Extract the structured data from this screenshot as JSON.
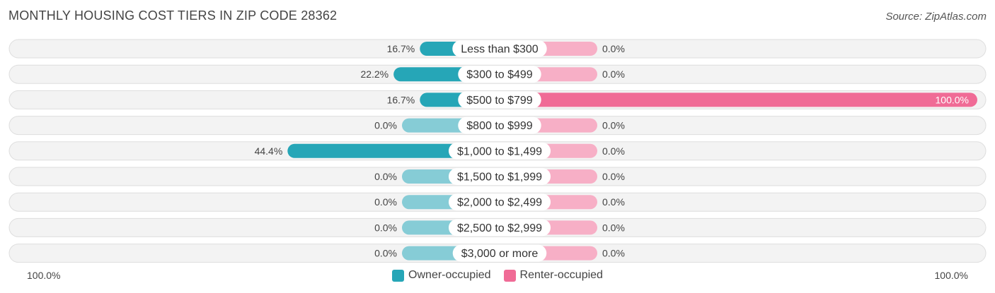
{
  "title": "MONTHLY HOUSING COST TIERS IN ZIP CODE 28362",
  "source": "Source: ZipAtlas.com",
  "axis": {
    "left_label": "100.0%",
    "right_label": "100.0%"
  },
  "colors": {
    "owner_strong": "#26a6b7",
    "owner_light": "#86ccd6",
    "renter_strong": "#f06b96",
    "renter_light": "#f7afc6",
    "row_bg": "#f3f3f3",
    "row_border": "#dedede"
  },
  "chart_data": {
    "type": "bar",
    "orientation": "diverging-horizontal",
    "categories": [
      "Less than $300",
      "$300 to $499",
      "$500 to $799",
      "$800 to $999",
      "$1,000 to $1,499",
      "$1,500 to $1,999",
      "$2,000 to $2,499",
      "$2,500 to $2,999",
      "$3,000 or more"
    ],
    "series": [
      {
        "name": "Owner-occupied",
        "values": [
          16.7,
          22.2,
          16.7,
          0.0,
          44.4,
          0.0,
          0.0,
          0.0,
          0.0
        ],
        "labels": [
          "16.7%",
          "22.2%",
          "16.7%",
          "0.0%",
          "44.4%",
          "0.0%",
          "0.0%",
          "0.0%",
          "0.0%"
        ]
      },
      {
        "name": "Renter-occupied",
        "values": [
          0.0,
          0.0,
          100.0,
          0.0,
          0.0,
          0.0,
          0.0,
          0.0,
          0.0
        ],
        "labels": [
          "0.0%",
          "0.0%",
          "100.0%",
          "0.0%",
          "0.0%",
          "0.0%",
          "0.0%",
          "0.0%",
          "0.0%"
        ]
      }
    ],
    "xlim": [
      -100,
      100
    ],
    "legend_position": "bottom-center"
  }
}
